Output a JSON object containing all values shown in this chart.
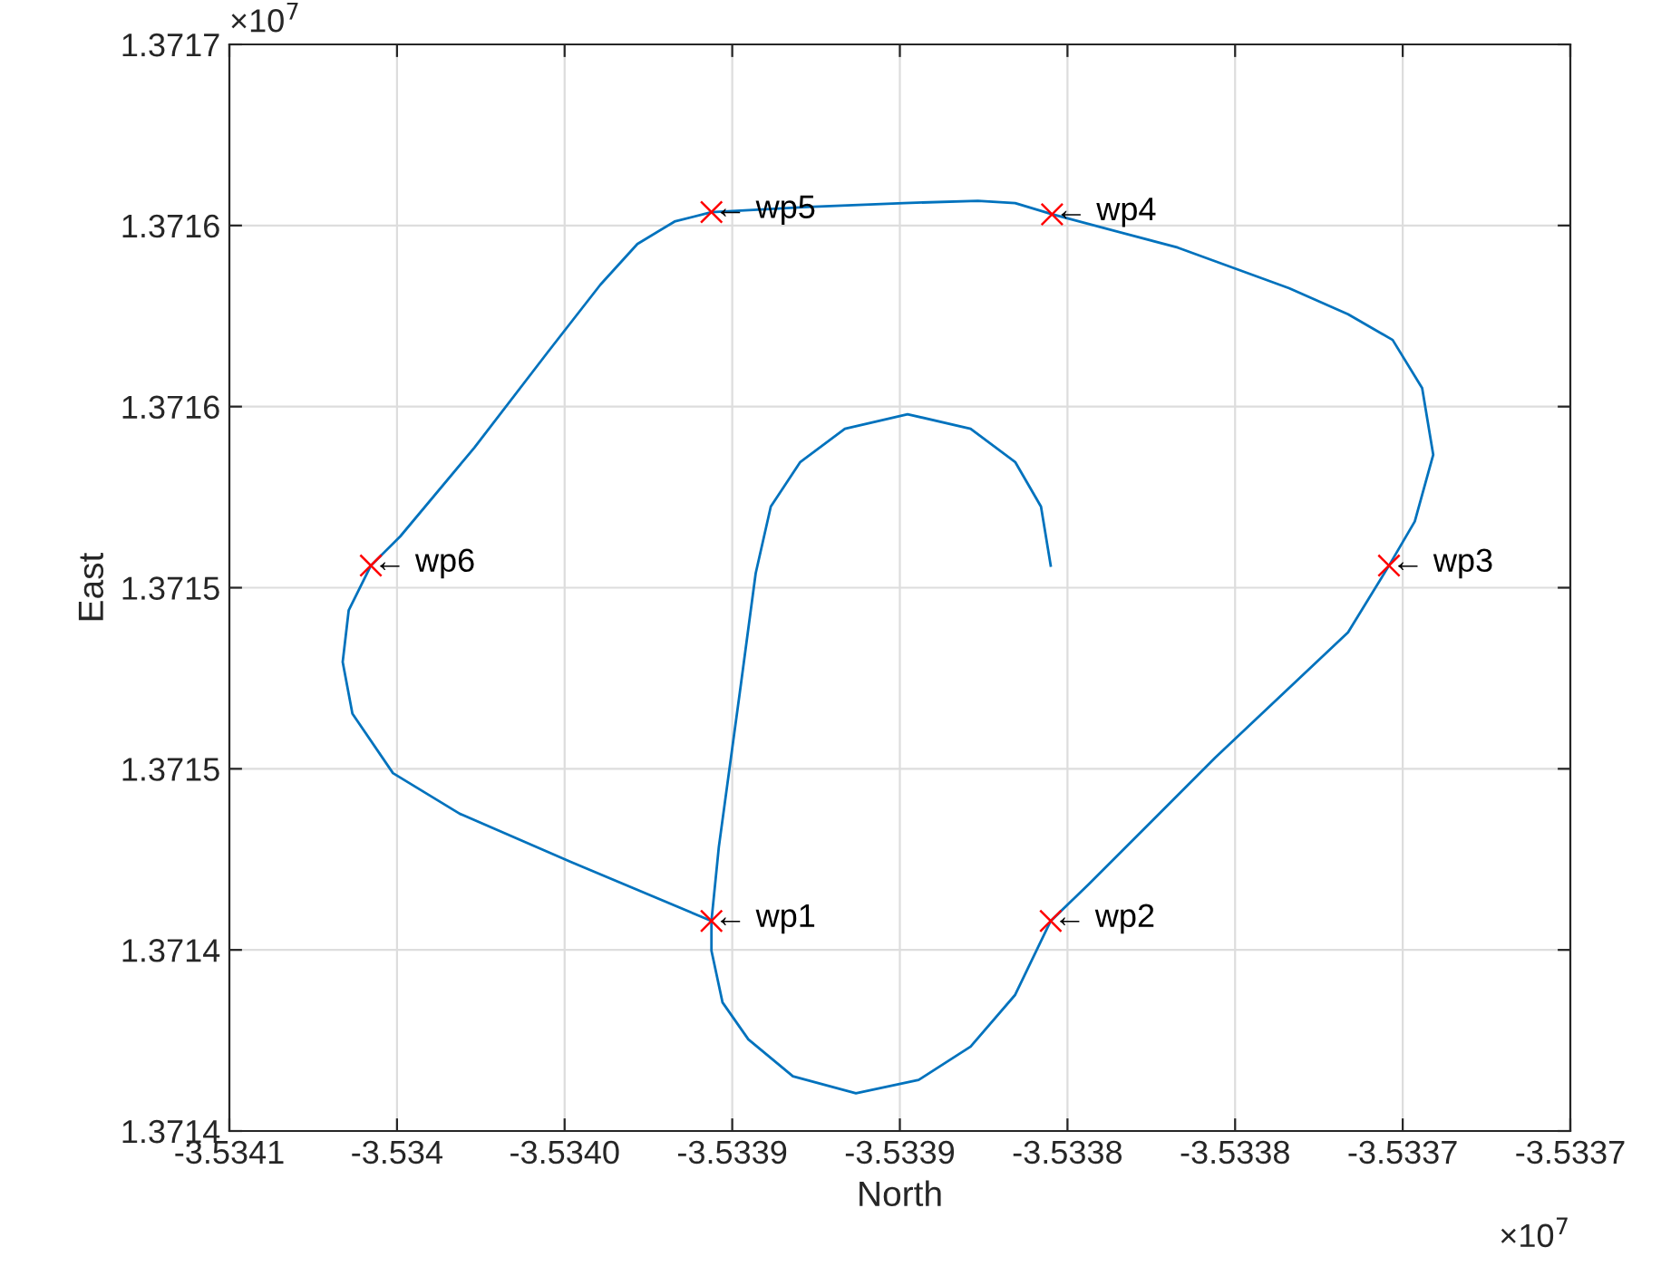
{
  "chart_data": {
    "type": "line",
    "xlabel": "North",
    "ylabel": "East",
    "grid": true,
    "xlim": [
      -3.5341,
      -3.5337
    ],
    "xticks": [
      {
        "value": -3.5341,
        "label": "-3.5341"
      },
      {
        "value": -3.53405,
        "label": "-3.534"
      },
      {
        "value": -3.534,
        "label": "-3.5340"
      },
      {
        "value": -3.53395,
        "label": "-3.5339"
      },
      {
        "value": -3.5339,
        "label": "-3.5339"
      },
      {
        "value": -3.53385,
        "label": "-3.5338"
      },
      {
        "value": -3.5338,
        "label": "-3.5338"
      },
      {
        "value": -3.53375,
        "label": "-3.5337"
      },
      {
        "value": -3.5337,
        "label": "-3.5337"
      }
    ],
    "ylim": [
      1.3714,
      1.3717
    ],
    "yticks": [
      {
        "value": 1.3714,
        "label": "1.3714"
      },
      {
        "value": 1.37145,
        "label": "1.3714"
      },
      {
        "value": 1.3715,
        "label": "1.3715"
      },
      {
        "value": 1.37155,
        "label": "1.3715"
      },
      {
        "value": 1.3716,
        "label": "1.3716"
      },
      {
        "value": 1.37165,
        "label": "1.3716"
      },
      {
        "value": 1.3717,
        "label": "1.3717"
      }
    ],
    "series": [
      {
        "color": "#0072bd",
        "marker": "none",
        "line_style": "solid",
        "x": [
          -3.5339562,
          -3.5339562,
          -3.5339529,
          -3.5339452,
          -3.5339319,
          -3.5339131,
          -3.5338944,
          -3.5338789,
          -3.5338656,
          -3.533855,
          -3.5338436,
          -3.533806,
          -3.5337663,
          -3.5337541,
          -3.5337464,
          -3.5337409,
          -3.5337442,
          -3.533753,
          -3.5337663,
          -3.5337839,
          -3.5338171,
          -3.5338546,
          -3.5338656,
          -3.5338767,
          -3.5338988,
          -3.5339275,
          -3.5339562,
          -3.5339672,
          -3.5339783,
          -3.5339893,
          -3.5340048,
          -3.5340269,
          -3.534049,
          -3.5340578,
          -3.5340644,
          -3.5340662,
          -3.5340633,
          -3.5340512,
          -3.5340313,
          -3.5339982,
          -3.5339562,
          -3.533954,
          -3.5339474,
          -3.533943,
          -3.5339385,
          -3.5339297,
          -3.5339164,
          -3.5338977,
          -3.5338789,
          -3.5338656,
          -3.5338579,
          -3.533855
        ],
        "values": [
          1.371458,
          1.3714498,
          1.3714355,
          1.3714253,
          1.3714151,
          1.3714104,
          1.3714141,
          1.3714233,
          1.3714376,
          1.371458,
          1.3714682,
          1.371503,
          1.3715377,
          1.3715561,
          1.3715683,
          1.3715867,
          1.3716051,
          1.3716184,
          1.3716255,
          1.3716327,
          1.3716439,
          1.3716531,
          1.3716562,
          1.3716568,
          1.3716562,
          1.3716551,
          1.3716537,
          1.3716511,
          1.3716449,
          1.3716337,
          1.3716153,
          1.3715887,
          1.3715642,
          1.3715561,
          1.3715438,
          1.3715295,
          1.3715152,
          1.3714988,
          1.3714876,
          1.3714743,
          1.371458,
          1.3714784,
          1.3715234,
          1.371554,
          1.3715724,
          1.3715847,
          1.3715939,
          1.3715979,
          1.3715939,
          1.3715847,
          1.3715724,
          1.3715561
        ]
      },
      {
        "type": "scatter",
        "color": "#ff0000",
        "marker": "cross",
        "x": [
          -3.5339562,
          -3.533855,
          -3.5337541,
          -3.5338546,
          -3.5339562,
          -3.5340578
        ],
        "values": [
          1.371458,
          1.371458,
          1.3715561,
          1.3716531,
          1.3716537,
          1.3715561
        ]
      }
    ],
    "annotations": [
      {
        "text": "← wp1",
        "x": -3.5339562,
        "y": 1.371458
      },
      {
        "text": "← wp2",
        "x": -3.533855,
        "y": 1.371458
      },
      {
        "text": "← wp3",
        "x": -3.5337541,
        "y": 1.3715561
      },
      {
        "text": "← wp4",
        "x": -3.5338546,
        "y": 1.3716531
      },
      {
        "text": "← wp5",
        "x": -3.5339562,
        "y": 1.3716537
      },
      {
        "text": "← wp6",
        "x": -3.5340578,
        "y": 1.3715561
      },
      "×10$^{7}$",
      "×10$^{7}$"
    ]
  }
}
